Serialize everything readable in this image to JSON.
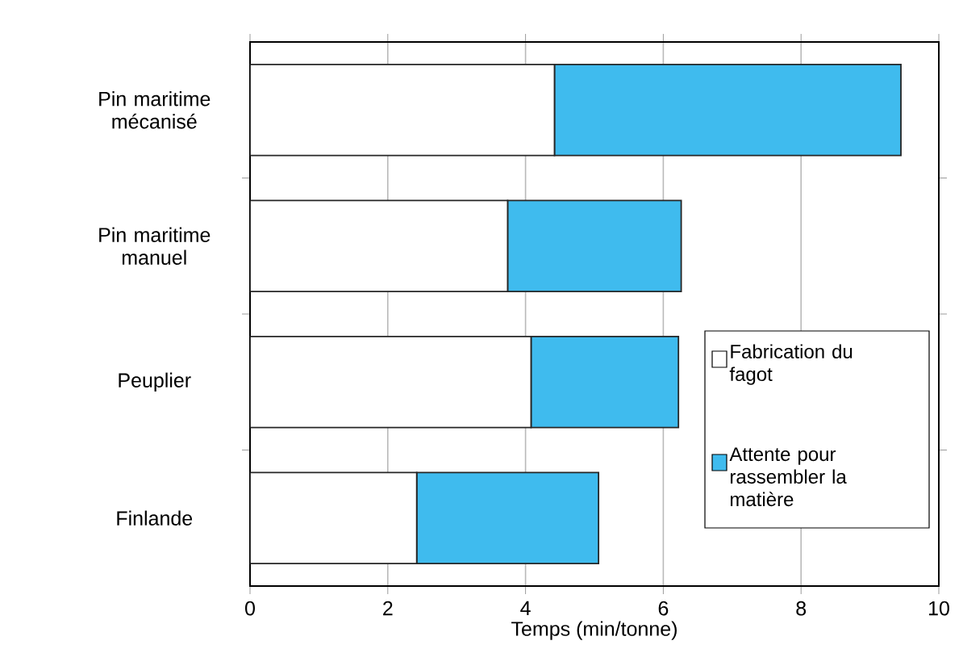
{
  "chart_data": {
    "type": "bar",
    "orientation": "horizontal",
    "stacked": true,
    "xlabel": "Temps (min/tonne)",
    "categories": [
      "Pin maritime mécanisé",
      "Pin maritime manuel",
      "Peuplier",
      "Finlande"
    ],
    "series": [
      {
        "name": "Fabrication du fagot",
        "color": "#ffffff",
        "values": [
          4.42,
          3.74,
          4.08,
          2.42
        ]
      },
      {
        "name": "Attente pour rassembler la matière",
        "color": "#3fbbee",
        "values": [
          5.03,
          2.52,
          2.14,
          2.64
        ]
      }
    ],
    "xlim": [
      0,
      10
    ],
    "xticks": [
      0,
      2,
      4,
      6,
      8,
      10
    ],
    "grid": "x",
    "legend": "bottom right"
  }
}
